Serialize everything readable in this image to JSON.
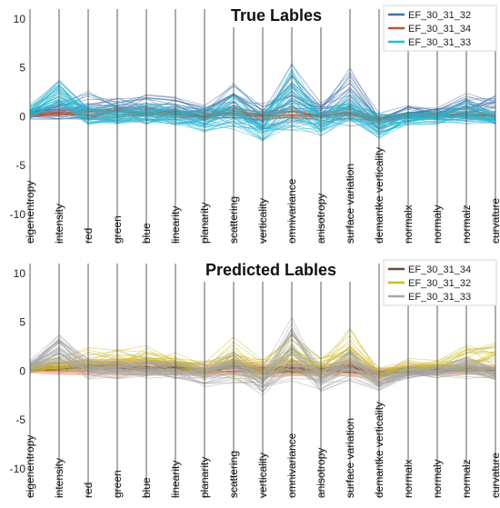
{
  "colors": {
    "EF_30_31_32_true": "#3f6fa8",
    "EF_30_31_34_true": "#b5553a",
    "EF_30_31_33_true": "#2ab7cf",
    "EF_30_31_34_pred": "#6e4a36",
    "EF_30_31_32_pred": "#cdb928",
    "EF_30_31_33_pred": "#a8a8a8",
    "pred_fill": "#e8521f"
  },
  "chart_data": [
    {
      "type": "parallel-coordinates",
      "title": "True Lables",
      "axes": [
        "eigenentropy",
        "intensity",
        "red",
        "green",
        "blue",
        "linearity",
        "planarity",
        "scattering",
        "verticality",
        "omnivariance",
        "anisotropy",
        "surface variation",
        "demantke verticality",
        "normalx",
        "normaly",
        "normalz",
        "curvature"
      ],
      "yticks": [
        10,
        5,
        0,
        -5,
        -10
      ],
      "ylim": [
        -13,
        11
      ],
      "legend_position": "top-right",
      "series": [
        {
          "name": "EF_30_31_32",
          "lines": 28,
          "mean": [
            0.3,
            0.6,
            0.9,
            0.9,
            0.9,
            0.7,
            0.2,
            1.3,
            0.0,
            2.0,
            0.2,
            2.0,
            -0.5,
            0.4,
            0.3,
            1.0,
            0.7
          ],
          "spread": [
            0.6,
            1.0,
            1.8,
            1.8,
            1.8,
            1.4,
            1.2,
            2.5,
            1.5,
            3.5,
            1.2,
            3.5,
            1.2,
            1.0,
            1.0,
            2.0,
            2.2
          ]
        },
        {
          "name": "EF_30_31_34",
          "lines": 18,
          "mean": [
            0.2,
            0.3,
            0.4,
            0.4,
            0.4,
            0.3,
            0.0,
            0.4,
            0.0,
            0.3,
            0.0,
            0.3,
            -0.3,
            0.1,
            0.1,
            0.2,
            0.1
          ],
          "spread": [
            0.3,
            0.5,
            0.6,
            0.6,
            0.6,
            0.5,
            0.4,
            0.6,
            0.5,
            0.6,
            0.4,
            0.6,
            0.4,
            0.4,
            0.4,
            0.4,
            0.3
          ]
        },
        {
          "name": "EF_30_31_33",
          "lines": 40,
          "mean": [
            0.5,
            2.2,
            0.2,
            0.2,
            0.3,
            0.1,
            -0.4,
            0.6,
            -1.0,
            1.8,
            -0.7,
            0.8,
            -1.0,
            -0.2,
            -0.1,
            0.5,
            -0.2
          ],
          "spread": [
            0.8,
            2.0,
            1.2,
            1.2,
            1.2,
            1.2,
            1.4,
            2.0,
            1.8,
            3.8,
            1.6,
            2.0,
            1.4,
            0.8,
            0.8,
            1.4,
            0.8
          ]
        }
      ]
    },
    {
      "type": "parallel-coordinates",
      "title": "Predicted Lables",
      "axes": [
        "eigenentropy",
        "intensity",
        "red",
        "green",
        "blue",
        "linearity",
        "planarity",
        "scattering",
        "verticality",
        "omnivariance",
        "anisotropy",
        "surface variation",
        "demantke verticality",
        "normalx",
        "normaly",
        "normalz",
        "curvature"
      ],
      "yticks": [
        10,
        5,
        0,
        -5,
        -10
      ],
      "ylim": [
        -13,
        11
      ],
      "legend_position": "top-right",
      "series": [
        {
          "name": "EF_30_31_34",
          "lines": 18,
          "mean": [
            0.2,
            0.3,
            0.4,
            0.4,
            0.4,
            0.3,
            0.0,
            0.4,
            0.0,
            0.3,
            0.0,
            0.3,
            -0.3,
            0.1,
            0.1,
            0.2,
            0.1
          ],
          "spread": [
            0.3,
            0.5,
            0.6,
            0.6,
            0.6,
            0.5,
            0.4,
            0.6,
            0.5,
            0.6,
            0.4,
            0.6,
            0.4,
            0.4,
            0.4,
            0.4,
            0.3
          ]
        },
        {
          "name": "EF_30_31_32",
          "lines": 28,
          "mean": [
            0.3,
            0.6,
            0.9,
            0.9,
            0.9,
            0.7,
            0.2,
            1.3,
            0.0,
            1.5,
            0.2,
            2.2,
            -0.5,
            0.4,
            0.3,
            1.0,
            1.0
          ],
          "spread": [
            0.6,
            1.0,
            1.8,
            1.8,
            1.8,
            1.4,
            1.2,
            2.5,
            1.5,
            2.5,
            1.2,
            3.5,
            1.2,
            1.0,
            1.0,
            2.0,
            2.5
          ]
        },
        {
          "name": "EF_30_31_33",
          "lines": 40,
          "mean": [
            0.5,
            2.2,
            0.2,
            0.2,
            0.3,
            0.1,
            -0.4,
            0.6,
            -1.0,
            2.0,
            -0.7,
            0.8,
            -1.0,
            -0.2,
            -0.1,
            0.5,
            -0.2
          ],
          "spread": [
            0.8,
            2.0,
            1.2,
            1.2,
            1.2,
            1.2,
            1.4,
            2.0,
            1.8,
            3.8,
            1.6,
            2.0,
            1.4,
            0.8,
            0.8,
            1.4,
            0.8
          ]
        }
      ]
    }
  ]
}
